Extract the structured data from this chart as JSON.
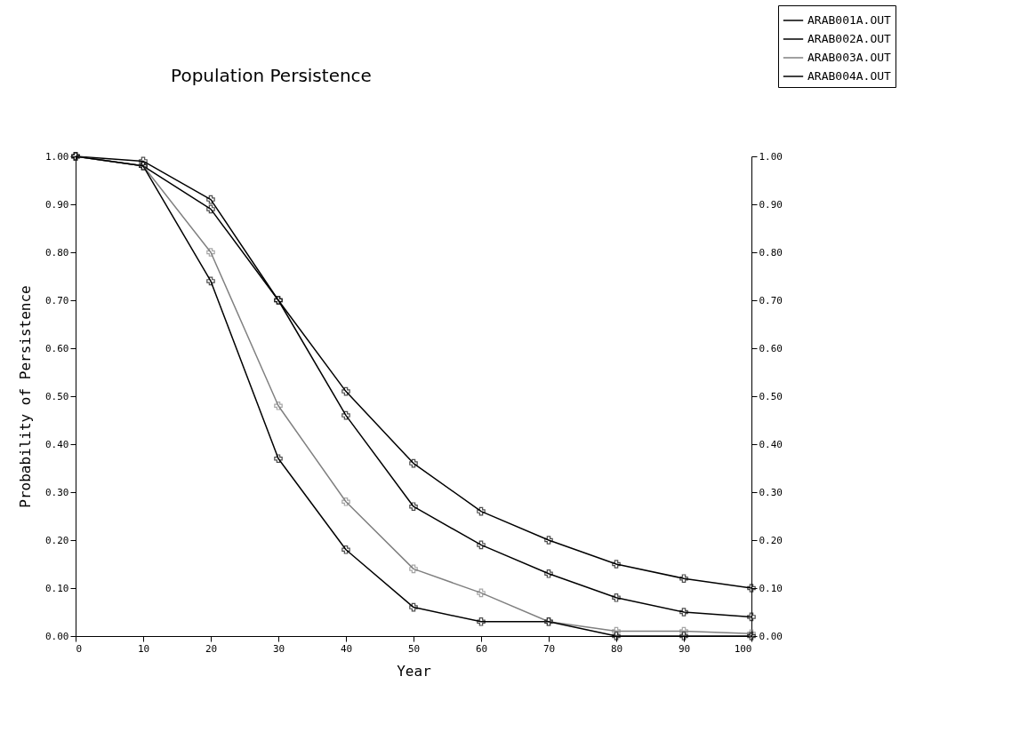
{
  "chart_data": {
    "type": "line",
    "title": "Population Persistence",
    "xlabel": "Year",
    "ylabel": "Probability of Persistence",
    "x": [
      0,
      10,
      20,
      30,
      40,
      50,
      60,
      70,
      80,
      90,
      100
    ],
    "series": [
      {
        "name": "ARAB001A.OUT",
        "color": "#000000",
        "values": [
          1.0,
          0.98,
          0.89,
          0.7,
          0.51,
          0.36,
          0.26,
          0.2,
          0.15,
          0.12,
          0.1
        ]
      },
      {
        "name": "ARAB002A.OUT",
        "color": "#000000",
        "values": [
          1.0,
          0.99,
          0.91,
          0.7,
          0.46,
          0.27,
          0.19,
          0.13,
          0.08,
          0.05,
          0.04
        ]
      },
      {
        "name": "ARAB003A.OUT",
        "color": "#808080",
        "values": [
          1.0,
          0.98,
          0.8,
          0.48,
          0.28,
          0.14,
          0.09,
          0.03,
          0.01,
          0.01,
          0.005
        ]
      },
      {
        "name": "ARAB004A.OUT",
        "color": "#000000",
        "values": [
          1.0,
          0.98,
          0.74,
          0.37,
          0.18,
          0.06,
          0.03,
          0.03,
          0.0,
          0.0,
          0.0
        ]
      }
    ],
    "xlim": [
      0,
      100
    ],
    "xticks": [
      0,
      10,
      20,
      30,
      40,
      50,
      60,
      70,
      80,
      90,
      100
    ],
    "ylim": [
      0,
      1
    ],
    "yticks": [
      {
        "value": 0,
        "label": "0.00"
      },
      {
        "value": 0.1,
        "label": "0.10"
      },
      {
        "value": 0.2,
        "label": "0.20"
      },
      {
        "value": 0.3,
        "label": "0.30"
      },
      {
        "value": 0.4,
        "label": "0.40"
      },
      {
        "value": 0.5,
        "label": "0.50"
      },
      {
        "value": 0.6,
        "label": "0.60"
      },
      {
        "value": 0.7,
        "label": "0.70"
      },
      {
        "value": 0.8,
        "label": "0.80"
      },
      {
        "value": 0.9,
        "label": "0.90"
      },
      {
        "value": 1,
        "label": "1.00"
      }
    ],
    "y2lim": [
      0,
      1
    ],
    "y2ticks": [
      {
        "value": 0,
        "label": "0.00"
      },
      {
        "value": 0.1,
        "label": "0.10"
      },
      {
        "value": 0.2,
        "label": "0.20"
      },
      {
        "value": 0.3,
        "label": "0.30"
      },
      {
        "value": 0.4,
        "label": "0.40"
      },
      {
        "value": 0.5,
        "label": "0.50"
      },
      {
        "value": 0.6,
        "label": "0.60"
      },
      {
        "value": 0.7,
        "label": "0.70"
      },
      {
        "value": 0.8,
        "label": "0.80"
      },
      {
        "value": 0.9,
        "label": "0.90"
      },
      {
        "value": 1,
        "label": "1.00"
      }
    ],
    "grid": false,
    "legend": "top right",
    "marker": "cross",
    "line_style": "solid"
  }
}
